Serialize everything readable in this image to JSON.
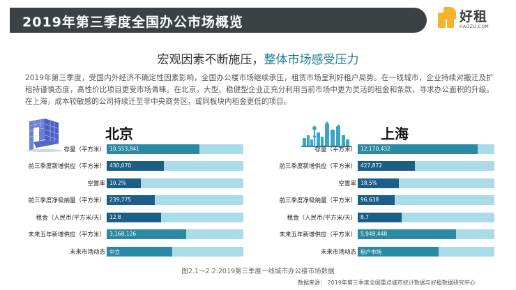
{
  "header": {
    "title": "2019年第三季度全国办公市场概览"
  },
  "logo": {
    "cn": "好租",
    "en": "HAOZU.COM"
  },
  "subtitle": {
    "part1": "宏观因素不断施压，",
    "part2": "整体市场感受压力"
  },
  "paragraph": "2019年第三季度，受国内外经济不确定性因素影响，全国办公楼市场继续承压，租赁市场呈利好租户局势。在一线城市，企业持续对搬迁及扩租持谨慎态度，高性价比项目更受市场青睐。在北京，大型、稳健型企业正充分利用当前市场中更为灵活的租金和条款，寻求办公面积的升级。在上海，成本较敏感的公司持续迁至非中央商务区，或同板块内租金更低的项目。",
  "panels": [
    {
      "city": "北京",
      "rows": [
        {
          "label": "存量（平方米）",
          "value": "10,553,841",
          "fill": 0.68,
          "color": "c-mid"
        },
        {
          "label": "前三季度新增供应（平方米）",
          "value": "430,070",
          "fill": 0.42,
          "color": "c-dark"
        },
        {
          "label": "空置率",
          "value": "10.2%",
          "fill": 0.25,
          "color": "c-dark"
        },
        {
          "label": "前三季度净吸纳量（平方米）",
          "value": "239,775",
          "fill": 0.35,
          "color": "c-dark"
        },
        {
          "label": "租金（人民币/平方米/天）",
          "value": "12.8",
          "fill": 0.4,
          "color": "c-dark"
        },
        {
          "label": "未来五年新增供应（平方米）",
          "value": "3,168,126",
          "fill": 0.58,
          "color": "c-teal"
        },
        {
          "label": "未来市场动态",
          "value": "中立",
          "fill": 0.48,
          "color": "c-teal"
        }
      ]
    },
    {
      "city": "上海",
      "rows": [
        {
          "label": "存量（平方米）",
          "value": "12,170,432",
          "fill": 0.88,
          "color": "c-mid"
        },
        {
          "label": "前三季度新增供应（平方米）",
          "value": "427,872",
          "fill": 0.42,
          "color": "c-dark"
        },
        {
          "label": "空置率",
          "value": "18.5%",
          "fill": 0.3,
          "color": "c-dark"
        },
        {
          "label": "前三季度净吸纳量（平方米）",
          "value": "96,638",
          "fill": 0.27,
          "color": "c-dark"
        },
        {
          "label": "租金（人民币/平方米/天）",
          "value": "8.7",
          "fill": 0.32,
          "color": "c-dark"
        },
        {
          "label": "未来五年新增供应（平方米）",
          "value": "5,948,448",
          "fill": 0.72,
          "color": "c-teal"
        },
        {
          "label": "未来市场动态",
          "value": "租户市场",
          "fill": 0.59,
          "color": "c-teal"
        }
      ]
    }
  ],
  "caption": "图2.1～2.2:2019第三季度一线城市办公楼市场数据",
  "source": "数据来源： 2019年第三季度全国重点城市统计数据与好租数据研究中心"
}
